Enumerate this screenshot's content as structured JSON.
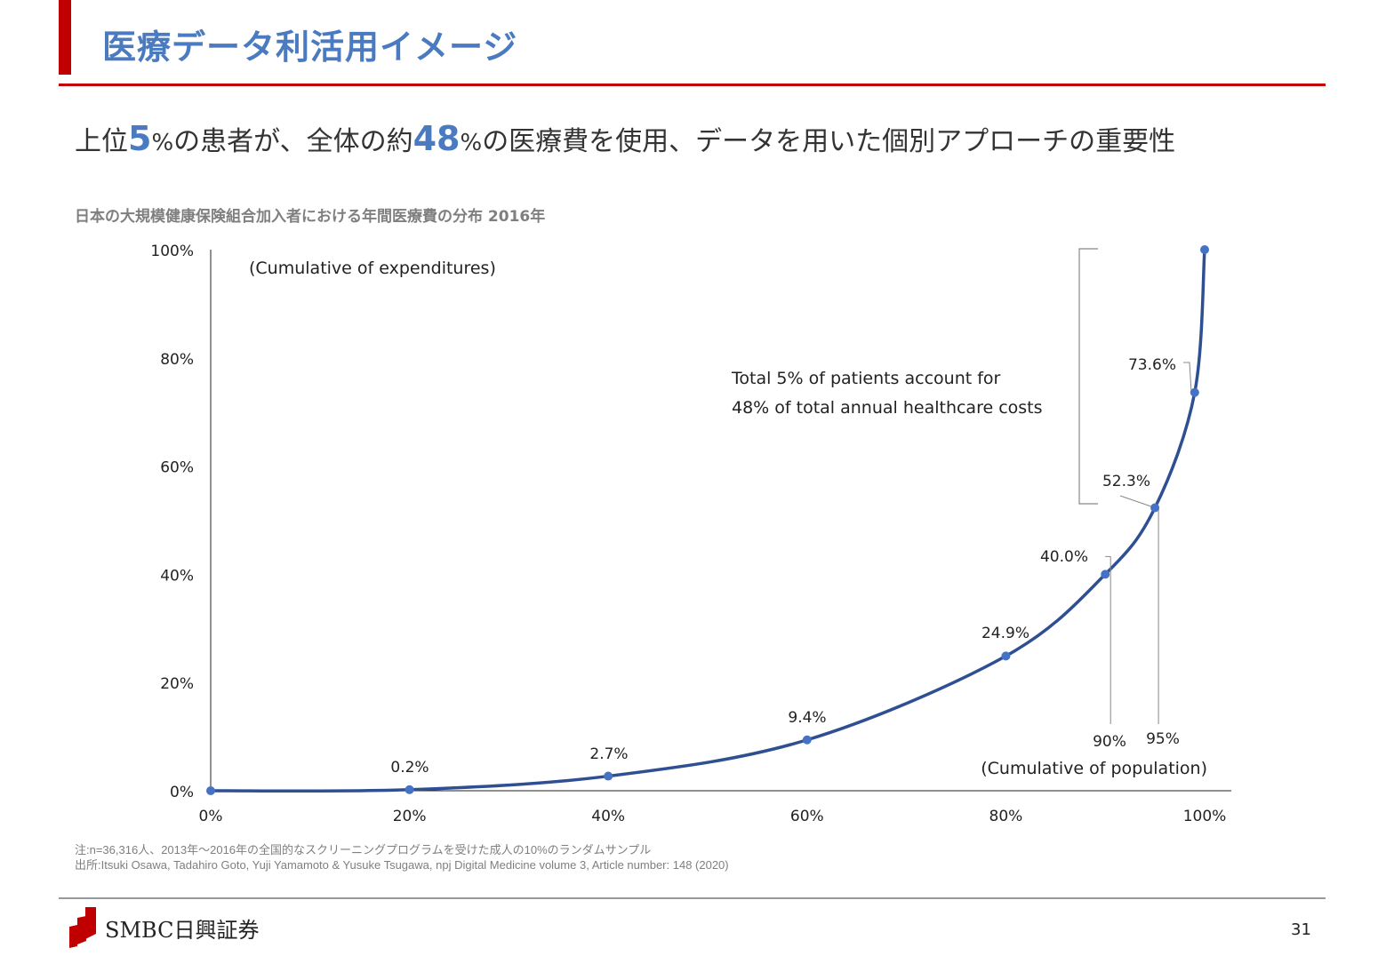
{
  "header": {
    "title": "医療データ利活用イメージ"
  },
  "headline": {
    "part1": "上位",
    "num1": "5",
    "pct1": "%",
    "part2": "の患者が、全体の約",
    "num2": "48",
    "pct2": "%",
    "part3": "の医療費を使用、データを用いた個別アプローチの重要性"
  },
  "chart_title": "日本の大規模健康保険組合加入者における年間医療費の分布 2016年",
  "chart_data": {
    "type": "line",
    "x": [
      0,
      20,
      40,
      60,
      80,
      90,
      95,
      99,
      100
    ],
    "y": [
      0,
      0.2,
      2.7,
      9.4,
      24.9,
      40.0,
      52.3,
      73.6,
      100
    ],
    "point_labels": [
      "",
      "0.2%",
      "2.7%",
      "9.4%",
      "24.9%",
      "40.0%",
      "52.3%",
      "73.6%",
      ""
    ],
    "xlabel": "(Cumulative of population)",
    "ylabel": "(Cumulative of expenditures)",
    "x_ticks": [
      "0%",
      "20%",
      "40%",
      "60%",
      "80%",
      "100%"
    ],
    "y_ticks": [
      "0%",
      "20%",
      "40%",
      "60%",
      "80%",
      "100%"
    ],
    "xlim": [
      0,
      100
    ],
    "ylim": [
      0,
      100
    ],
    "annotation_lines": [
      "Total 5% of patients account for",
      "48% of total annual healthcare costs"
    ],
    "marker_labels": {
      "p90": "90%",
      "p95": "95%"
    },
    "line_color": "#2f4f93",
    "point_color": "#4472c4",
    "grid": false
  },
  "notes": {
    "note": "注:n=36,316人、2013年～2016年の全国的なスクリーニングプログラムを受けた成人の10%のランダムサンプル",
    "source": "出所:Itsuki Osawa, Tadahiro Goto, Yuji Yamamoto & Yusuke Tsugawa, npj Digital Medicine volume 3, Article number: 148 (2020)"
  },
  "footer": {
    "logo_text": "SMBC日興証券",
    "page_number": "31"
  },
  "colors": {
    "accent_red": "#c00000",
    "title_blue": "#4a7ac0"
  }
}
